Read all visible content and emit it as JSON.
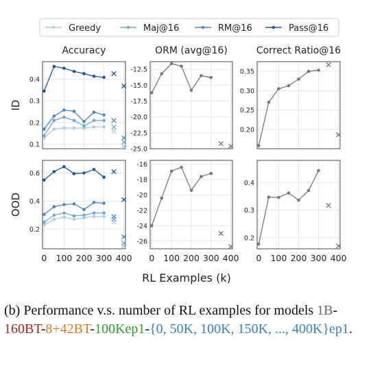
{
  "chart_data": {
    "type": "line",
    "legend": {
      "placement": "top",
      "entries": [
        {
          "name": "Greedy",
          "color": "#a9cbe6"
        },
        {
          "name": "Maj@16",
          "color": "#72a7d3"
        },
        {
          "name": "RM@16",
          "color": "#4a86c0"
        },
        {
          "name": "Pass@16",
          "color": "#1f5596"
        }
      ]
    },
    "x_label": "RL Examples (k)",
    "x_ticks": [
      "0",
      "100",
      "200",
      "300",
      "400"
    ],
    "x": [
      0,
      50,
      100,
      150,
      200,
      250,
      300
    ],
    "x_extra": 350,
    "x_final": 400,
    "columns": [
      "Accuracy",
      "ORM (avg@16)",
      "Correct Ratio@16"
    ],
    "rows": [
      "ID",
      "OOD"
    ],
    "panels": [
      {
        "row": "ID",
        "column": "Accuracy",
        "ylim": [
          0.08,
          0.48
        ],
        "yticks": [
          "0.1",
          "0.2",
          "0.3",
          "0.4"
        ],
        "ytick_values": [
          0.1,
          0.2,
          0.3,
          0.4
        ],
        "series": [
          {
            "name": "Greedy",
            "color": "#a9cbe6",
            "values": [
              0.13,
              0.17,
              0.175,
              0.175,
              0.175,
              0.18,
              0.18
            ],
            "x350": 0.16,
            "x400": 0.09
          },
          {
            "name": "Maj@16",
            "color": "#72a7d3",
            "values": [
              0.14,
              0.21,
              0.225,
              0.21,
              0.185,
              0.21,
              0.21
            ],
            "x350": 0.18,
            "x400": 0.11
          },
          {
            "name": "RM@16",
            "color": "#4a86c0",
            "values": [
              0.17,
              0.23,
              0.258,
              0.252,
              0.205,
              0.248,
              0.235
            ],
            "x350": 0.21,
            "x400": 0.13
          },
          {
            "name": "Pass@16",
            "color": "#1f5596",
            "values": [
              0.345,
              0.458,
              0.45,
              0.435,
              0.425,
              0.413,
              0.408
            ],
            "x350": 0.425,
            "x400": 0.368
          }
        ]
      },
      {
        "row": "ID",
        "column": "ORM (avg@16)",
        "ylim": [
          -25.0,
          -11.3
        ],
        "yticks": [
          "-12.5",
          "-15.0",
          "-17.5",
          "-20.0",
          "-22.5",
          "-25.0"
        ],
        "ytick_values": [
          -12.5,
          -15.0,
          -17.5,
          -20.0,
          -22.5,
          -25.0
        ],
        "series": [
          {
            "name": "ORM",
            "color": "#777777",
            "values": [
              -16.2,
              -13.2,
              -11.6,
              -12.0,
              -15.8,
              -13.5,
              -13.8
            ],
            "x350": -24.2,
            "x400": -24.6
          }
        ]
      },
      {
        "row": "ID",
        "column": "Correct Ratio@16",
        "ylim": [
          0.15,
          0.375
        ],
        "yticks": [
          "0.35",
          "0.30",
          "0.25",
          "0.20"
        ],
        "ytick_values": [
          0.35,
          0.3,
          0.25,
          0.2
        ],
        "series": [
          {
            "name": "Correct Ratio",
            "color": "#777777",
            "values": [
              0.158,
              0.27,
              0.305,
              0.313,
              0.33,
              0.35,
              0.353
            ],
            "x350": 0.367,
            "x400": 0.186
          }
        ]
      },
      {
        "row": "OOD",
        "column": "Accuracy",
        "ylim": [
          0.06,
          0.69
        ],
        "yticks": [
          "0.2",
          "0.4",
          "0.6"
        ],
        "ytick_values": [
          0.2,
          0.4,
          0.6
        ],
        "series": [
          {
            "name": "Greedy",
            "color": "#a9cbe6",
            "values": [
              0.23,
              0.27,
              0.285,
              0.27,
              0.28,
              0.29,
              0.29
            ],
            "x350": 0.25,
            "x400": 0.08
          },
          {
            "name": "Maj@16",
            "color": "#72a7d3",
            "values": [
              0.25,
              0.3,
              0.315,
              0.295,
              0.3,
              0.315,
              0.315
            ],
            "x350": 0.27,
            "x400": 0.1
          },
          {
            "name": "RM@16",
            "color": "#4a86c0",
            "values": [
              0.305,
              0.36,
              0.375,
              0.38,
              0.34,
              0.39,
              0.385
            ],
            "x350": 0.29,
            "x400": 0.145
          },
          {
            "name": "Pass@16",
            "color": "#1f5596",
            "values": [
              0.55,
              0.61,
              0.645,
              0.595,
              0.6,
              0.625,
              0.57
            ],
            "x350": 0.61,
            "x400": 0.41
          }
        ]
      },
      {
        "row": "OOD",
        "column": "ORM (avg@16)",
        "ylim": [
          -27.0,
          -15.5
        ],
        "yticks": [
          "-16",
          "-18",
          "-20",
          "-22",
          "-24",
          "-26"
        ],
        "ytick_values": [
          -16,
          -18,
          -20,
          -22,
          -24,
          -26
        ],
        "series": [
          {
            "name": "ORM",
            "color": "#777777",
            "values": [
              -24.0,
              -20.4,
              -16.9,
              -16.4,
              -19.4,
              -17.6,
              -17.2
            ],
            "x350": -25.0,
            "x400": -26.7
          }
        ]
      },
      {
        "row": "OOD",
        "column": "Correct Ratio@16",
        "ylim": [
          0.16,
          0.48
        ],
        "yticks": [
          "0.4",
          "0.3",
          "0.2"
        ],
        "ytick_values": [
          0.4,
          0.3,
          0.2
        ],
        "series": [
          {
            "name": "Correct Ratio",
            "color": "#777777",
            "values": [
              0.177,
              0.347,
              0.346,
              0.362,
              0.336,
              0.371,
              0.443
            ],
            "x350": 0.317,
            "x400": 0.17
          }
        ]
      }
    ]
  },
  "caption": {
    "prefix": "(b) Performance v.s.  number of RL examples for models ",
    "part_1b": "1B",
    "sep1": "-",
    "part_160bt": "160BT",
    "sep2": "-",
    "part_8_42bt": "8+42BT",
    "sep3": "-",
    "part_100kep1": "100Kep1",
    "sep4": "-",
    "part_set": "{0, 50K, 100K, 150K, ..., 400K}ep1",
    "suffix": "."
  }
}
